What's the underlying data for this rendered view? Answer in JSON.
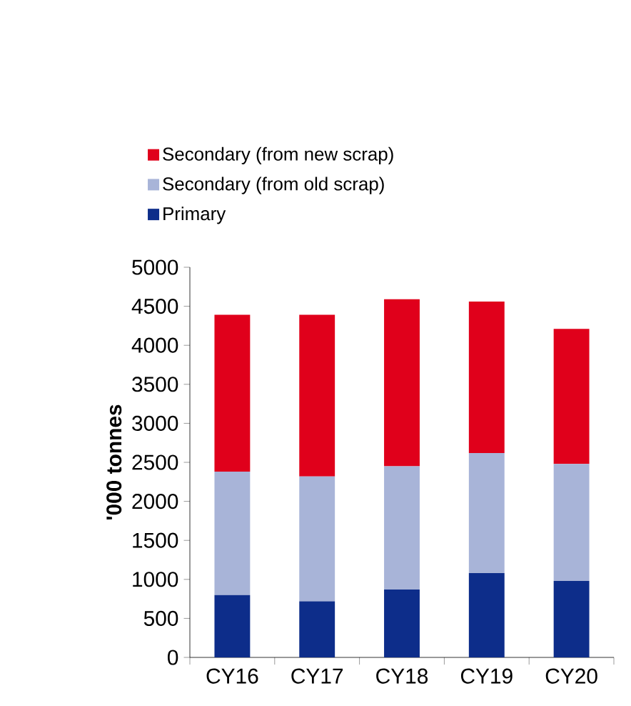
{
  "chart_data": {
    "type": "bar",
    "stacked": true,
    "ylabel": "'000 tonnes",
    "categories": [
      "CY16",
      "CY17",
      "CY18",
      "CY19",
      "CY20"
    ],
    "series": [
      {
        "name": "Primary",
        "color": "#0d2d8a",
        "values": [
          800,
          720,
          870,
          1080,
          980
        ]
      },
      {
        "name": "Secondary (from old scrap)",
        "color": "#a8b4d8",
        "values": [
          1580,
          1600,
          1580,
          1540,
          1500
        ]
      },
      {
        "name": "Secondary (from new scrap)",
        "color": "#e0001b",
        "values": [
          2010,
          2070,
          2140,
          1940,
          1730
        ]
      }
    ],
    "ylim": [
      0,
      5000
    ],
    "yticks": [
      0,
      500,
      1000,
      1500,
      2000,
      2500,
      3000,
      3500,
      4000,
      4500,
      5000
    ],
    "legend": "top",
    "grid": false
  }
}
